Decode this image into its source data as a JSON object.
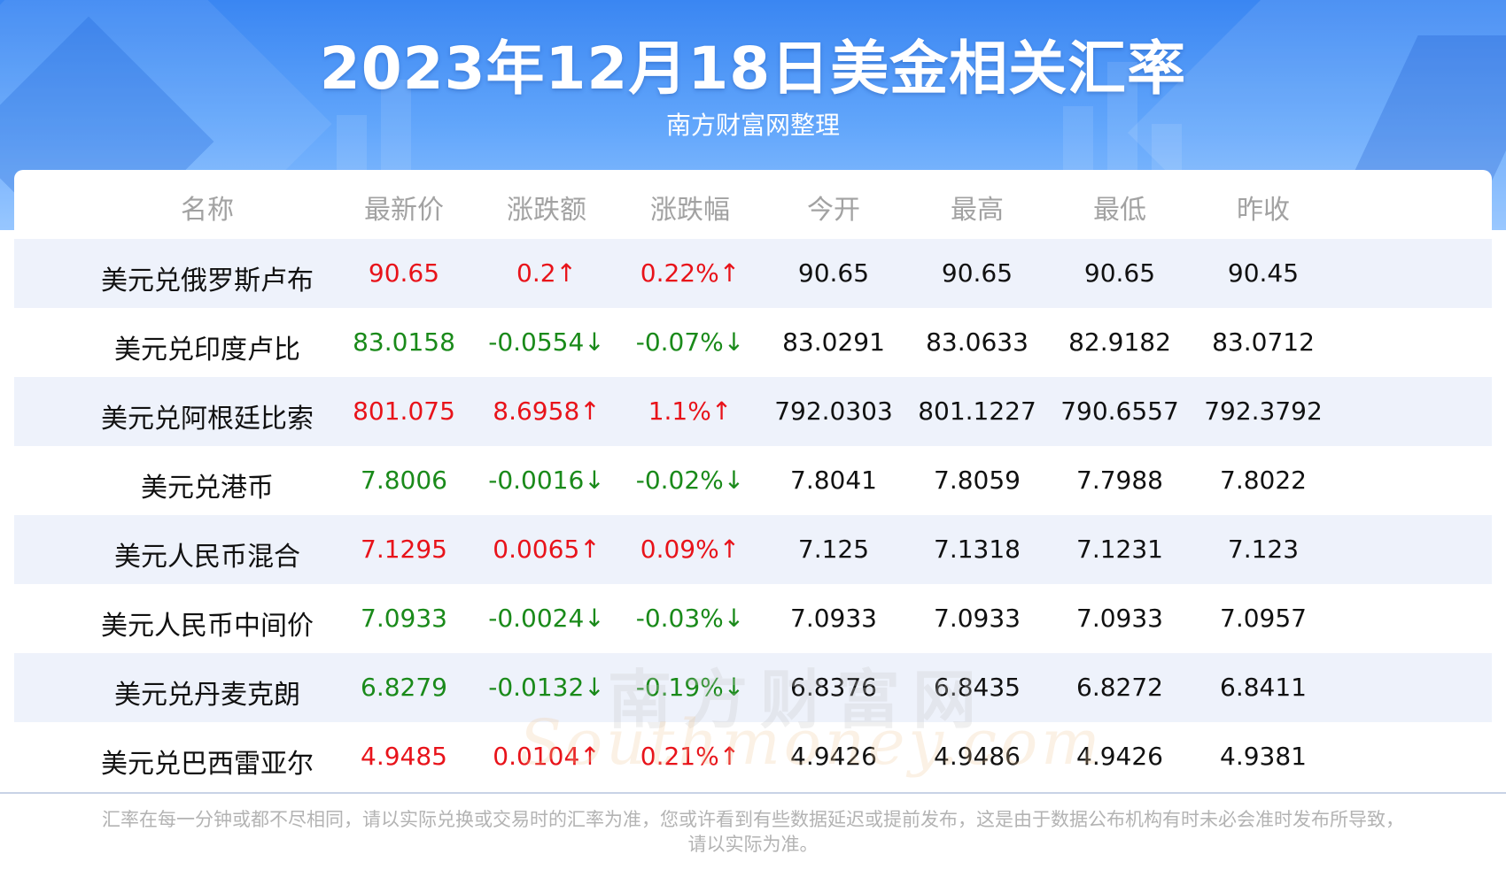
{
  "header": {
    "title": "2023年12月18日美金相关汇率",
    "subtitle": "南方财富网整理"
  },
  "table": {
    "columns": [
      "名称",
      "最新价",
      "涨跌额",
      "涨跌幅",
      "今开",
      "最高",
      "最低",
      "昨收"
    ],
    "rows": [
      {
        "name": "美元兑俄罗斯卢布",
        "latest": "90.65",
        "change": "0.2↑",
        "pct": "0.22%↑",
        "open": "90.65",
        "high": "90.65",
        "low": "90.65",
        "prev": "90.45",
        "trend": "up"
      },
      {
        "name": "美元兑印度卢比",
        "latest": "83.0158",
        "change": "-0.0554↓",
        "pct": "-0.07%↓",
        "open": "83.0291",
        "high": "83.0633",
        "low": "82.9182",
        "prev": "83.0712",
        "trend": "down"
      },
      {
        "name": "美元兑阿根廷比索",
        "latest": "801.075",
        "change": "8.6958↑",
        "pct": "1.1%↑",
        "open": "792.0303",
        "high": "801.1227",
        "low": "790.6557",
        "prev": "792.3792",
        "trend": "up"
      },
      {
        "name": "美元兑港币",
        "latest": "7.8006",
        "change": "-0.0016↓",
        "pct": "-0.02%↓",
        "open": "7.8041",
        "high": "7.8059",
        "low": "7.7988",
        "prev": "7.8022",
        "trend": "down"
      },
      {
        "name": "美元人民币混合",
        "latest": "7.1295",
        "change": "0.0065↑",
        "pct": "0.09%↑",
        "open": "7.125",
        "high": "7.1318",
        "low": "7.1231",
        "prev": "7.123",
        "trend": "up"
      },
      {
        "name": "美元人民币中间价",
        "latest": "7.0933",
        "change": "-0.0024↓",
        "pct": "-0.03%↓",
        "open": "7.0933",
        "high": "7.0933",
        "low": "7.0933",
        "prev": "7.0957",
        "trend": "down"
      },
      {
        "name": "美元兑丹麦克朗",
        "latest": "6.8279",
        "change": "-0.0132↓",
        "pct": "-0.19%↓",
        "open": "6.8376",
        "high": "6.8435",
        "low": "6.8272",
        "prev": "6.8411",
        "trend": "down"
      },
      {
        "name": "美元兑巴西雷亚尔",
        "latest": "4.9485",
        "change": "0.0104↑",
        "pct": "0.21%↑",
        "open": "4.9426",
        "high": "4.9486",
        "low": "4.9426",
        "prev": "4.9381",
        "trend": "up"
      }
    ]
  },
  "footer": {
    "line1": "汇率在每一分钟或都不尽相同，请以实际兑换或交易时的汇率为准，您或许看到有些数据延迟或提前发布，这是由于数据公布机构有时未必会准时发布所导致，",
    "line2": "请以实际为准。"
  },
  "watermark": {
    "cn": "南方财富网",
    "en": "Southmoney.com"
  },
  "colors": {
    "up": "#e8131a",
    "down": "#1a8a1a",
    "header_blue": "#3a86f2",
    "stripe": "#eef2fb"
  }
}
